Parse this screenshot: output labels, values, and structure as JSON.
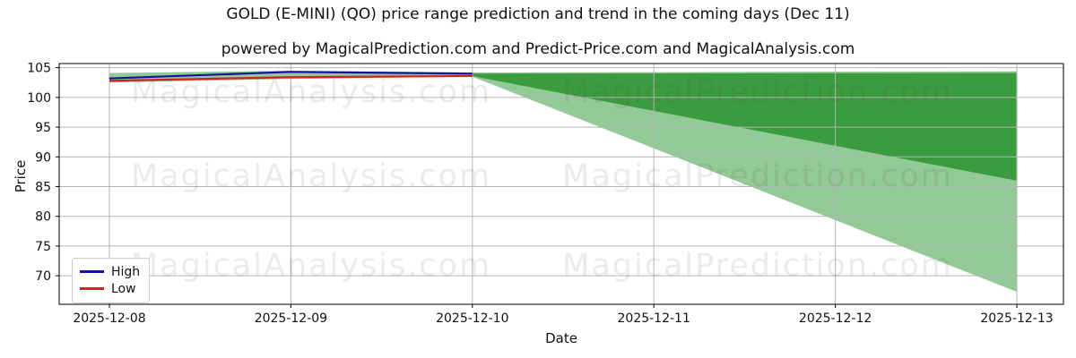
{
  "title": "GOLD (E-MINI) (QO) price range prediction and trend in the coming days (Dec 11)",
  "subtitle": "powered by MagicalPrediction.com and Predict-Price.com and MagicalAnalysis.com",
  "watermarks": {
    "left": "MagicalAnalysis.com",
    "right": "MagicalPrediction.com"
  },
  "legend": {
    "items": [
      {
        "label": "High",
        "color": "#1212a8"
      },
      {
        "label": "Low",
        "color": "#d81f1f"
      }
    ]
  },
  "colors": {
    "band_light": "#92c996",
    "band_dark": "#3b9c3f",
    "grid": "#b4b4b4",
    "spine": "#000000"
  },
  "chart_data": {
    "type": "line",
    "title": "GOLD (E-MINI) (QO) price range prediction and trend in the coming days (Dec 11)",
    "subtitle": "powered by MagicalPrediction.com and Predict-Price.com and MagicalAnalysis.com",
    "xlabel": "Date",
    "ylabel": "Price",
    "x": [
      "2025-12-08",
      "2025-12-09",
      "2025-12-10",
      "2025-12-11",
      "2025-12-12",
      "2025-12-13"
    ],
    "y_ticks": [
      70,
      75,
      80,
      85,
      90,
      95,
      100,
      105
    ],
    "ylim": [
      65.2,
      105.7
    ],
    "grid": true,
    "legend_position": "lower left",
    "series": [
      {
        "name": "High",
        "color": "#1212a8",
        "x": [
          "2025-12-08",
          "2025-12-09",
          "2025-12-10"
        ],
        "values": [
          103.2,
          104.3,
          104.0
        ]
      },
      {
        "name": "Low",
        "color": "#d81f1f",
        "x": [
          "2025-12-08",
          "2025-12-09",
          "2025-12-10"
        ],
        "values": [
          102.8,
          103.4,
          103.6
        ]
      }
    ],
    "bands": [
      {
        "name": "historical-range",
        "color": "#92c996",
        "x": [
          "2025-12-08",
          "2025-12-09",
          "2025-12-10"
        ],
        "top": [
          104.1,
          104.5,
          104.2
        ],
        "bottom": [
          102.5,
          103.1,
          103.5
        ]
      },
      {
        "name": "forecast-outer",
        "color": "#92c996",
        "x": [
          "2025-12-10",
          "2025-12-13"
        ],
        "top": [
          104.2,
          104.4
        ],
        "bottom": [
          103.5,
          67.3
        ]
      },
      {
        "name": "forecast-inner",
        "color": "#3b9c3f",
        "x": [
          "2025-12-10",
          "2025-12-13"
        ],
        "top": [
          104.0,
          104.1
        ],
        "bottom": [
          103.6,
          86.0
        ]
      }
    ]
  }
}
